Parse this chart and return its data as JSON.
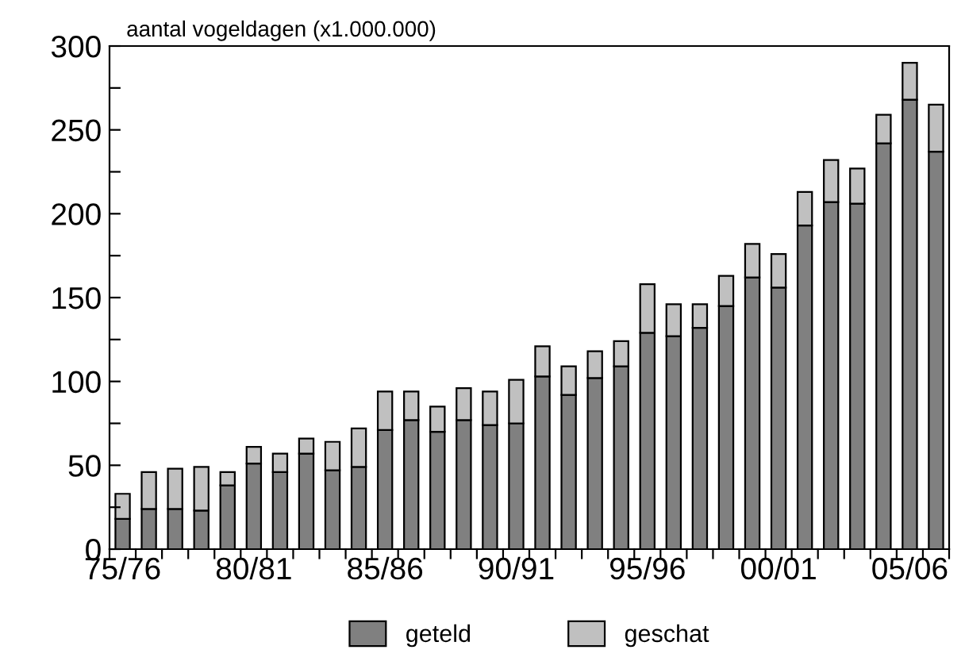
{
  "chart_data": {
    "type": "bar",
    "stacked": true,
    "ylabel": "aantal vogeldagen (x1.000.000)",
    "categories": [
      "75/76",
      null,
      null,
      null,
      null,
      "80/81",
      null,
      null,
      null,
      null,
      "85/86",
      null,
      null,
      null,
      null,
      "90/91",
      null,
      null,
      null,
      null,
      "95/96",
      null,
      null,
      null,
      null,
      "00/01",
      null,
      null,
      null,
      null,
      "05/06",
      null
    ],
    "series": [
      {
        "name": "geteld",
        "color": "#808080",
        "values": [
          18,
          24,
          24,
          23,
          38,
          51,
          46,
          57,
          47,
          49,
          71,
          77,
          70,
          77,
          74,
          75,
          103,
          92,
          102,
          109,
          129,
          127,
          132,
          145,
          162,
          156,
          193,
          207,
          206,
          242,
          268,
          237
        ]
      },
      {
        "name": "geschat",
        "color": "#c0c0c0",
        "values": [
          15,
          22,
          24,
          26,
          8,
          10,
          11,
          9,
          17,
          23,
          23,
          17,
          15,
          19,
          20,
          26,
          18,
          17,
          16,
          15,
          29,
          19,
          14,
          18,
          20,
          20,
          20,
          25,
          21,
          17,
          22,
          28
        ]
      }
    ],
    "ylim": [
      0,
      300
    ],
    "yticks": [
      0,
      {
        "value": 25,
        "label": null
      },
      50,
      {
        "value": 75,
        "label": null
      },
      100,
      {
        "value": 125,
        "label": null
      },
      150,
      {
        "value": 175,
        "label": null
      },
      200,
      {
        "value": 225,
        "label": null
      },
      250,
      {
        "value": 275,
        "label": null
      },
      300
    ],
    "grid": false,
    "legend": "bottom"
  }
}
